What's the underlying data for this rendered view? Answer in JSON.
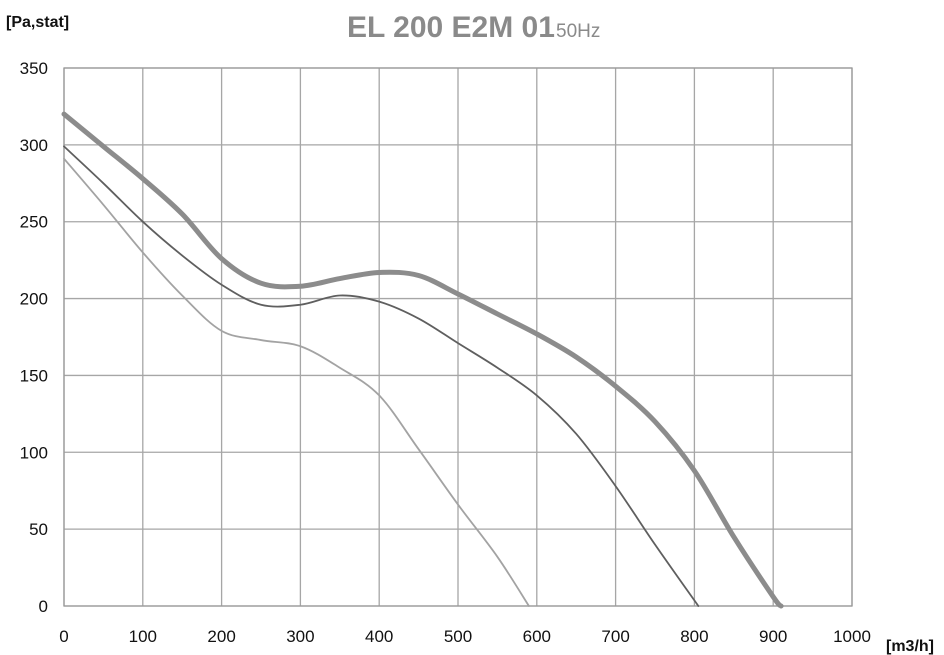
{
  "chart_data": {
    "type": "line",
    "title": "EL 200 E2M 01",
    "subtitle": "50Hz",
    "xlabel": "[m3/h]",
    "ylabel": "[Pa,stat]",
    "xlim": [
      0,
      1000
    ],
    "ylim": [
      0,
      350
    ],
    "x_ticks": [
      0,
      100,
      200,
      300,
      400,
      500,
      600,
      700,
      800,
      900,
      1000
    ],
    "y_ticks": [
      0,
      50,
      100,
      150,
      200,
      250,
      300,
      350
    ],
    "grid": true,
    "series": [
      {
        "color": "#8c8c8c",
        "stroke_width": 5,
        "x": [
          0,
          50,
          100,
          150,
          200,
          250,
          300,
          350,
          400,
          450,
          500,
          550,
          600,
          650,
          700,
          750,
          800,
          850,
          900,
          910
        ],
        "y": [
          320,
          299,
          278,
          255,
          226,
          210,
          208,
          213,
          217,
          215,
          203,
          190,
          177,
          162,
          143,
          120,
          88,
          45,
          6,
          0
        ]
      },
      {
        "color": "#5f5f5f",
        "stroke_width": 1.8,
        "x": [
          0,
          50,
          100,
          150,
          200,
          250,
          300,
          350,
          400,
          450,
          500,
          550,
          600,
          650,
          700,
          750,
          805
        ],
        "y": [
          299,
          275,
          250,
          228,
          209,
          196,
          196,
          202,
          198,
          187,
          171,
          155,
          137,
          112,
          78,
          40,
          0
        ]
      },
      {
        "color": "#a3a3a3",
        "stroke_width": 1.8,
        "x": [
          0,
          50,
          100,
          150,
          200,
          250,
          300,
          350,
          400,
          450,
          500,
          550,
          590
        ],
        "y": [
          291,
          261,
          230,
          202,
          179,
          173,
          169,
          155,
          137,
          102,
          66,
          32,
          0
        ]
      }
    ]
  }
}
